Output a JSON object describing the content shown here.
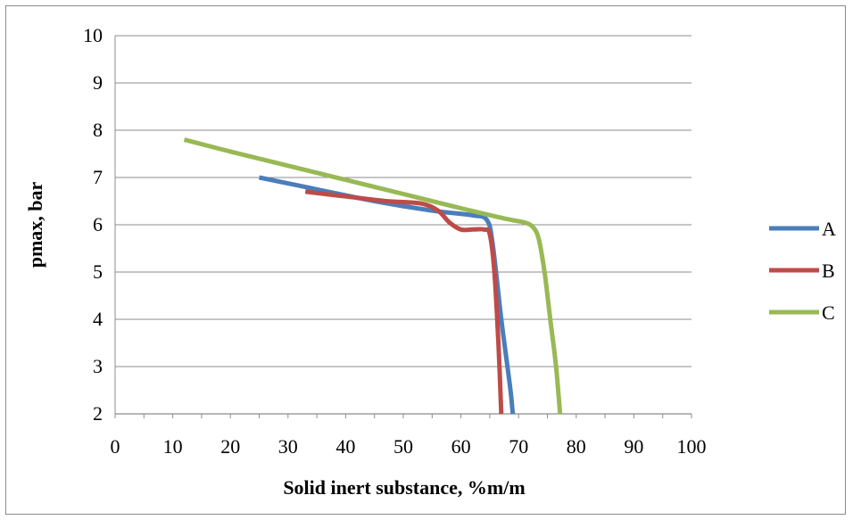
{
  "chart_data": {
    "type": "line",
    "title": "",
    "xlabel": "Solid inert substance, %m/m",
    "ylabel": "pmax, bar",
    "xlim": [
      0,
      100
    ],
    "ylim": [
      2,
      10
    ],
    "x_ticks": [
      0,
      10,
      20,
      30,
      40,
      50,
      60,
      70,
      80,
      90,
      100
    ],
    "y_ticks": [
      2,
      3,
      4,
      5,
      6,
      7,
      8,
      9,
      10
    ],
    "grid": "horizontal",
    "legend_position": "right",
    "series": [
      {
        "name": "A",
        "color": "#4a7ebb",
        "points": [
          [
            25,
            7.0
          ],
          [
            35,
            6.75
          ],
          [
            45,
            6.5
          ],
          [
            55,
            6.3
          ],
          [
            62,
            6.2
          ],
          [
            64.5,
            6.1
          ],
          [
            65.5,
            5.6
          ],
          [
            67,
            4.0
          ],
          [
            68.5,
            2.6
          ],
          [
            69,
            2.0
          ]
        ]
      },
      {
        "name": "B",
        "color": "#be4b48",
        "points": [
          [
            33,
            6.7
          ],
          [
            40,
            6.6
          ],
          [
            47,
            6.5
          ],
          [
            53,
            6.45
          ],
          [
            56,
            6.3
          ],
          [
            58,
            6.05
          ],
          [
            60,
            5.9
          ],
          [
            62,
            5.9
          ],
          [
            64,
            5.9
          ],
          [
            65,
            5.8
          ],
          [
            65.8,
            5.0
          ],
          [
            66.5,
            3.5
          ],
          [
            67,
            2.0
          ]
        ]
      },
      {
        "name": "C",
        "color": "#98b954",
        "points": [
          [
            12,
            7.8
          ],
          [
            20,
            7.55
          ],
          [
            30,
            7.25
          ],
          [
            40,
            6.95
          ],
          [
            50,
            6.65
          ],
          [
            60,
            6.35
          ],
          [
            68,
            6.12
          ],
          [
            71,
            6.05
          ],
          [
            72.5,
            5.95
          ],
          [
            73.5,
            5.7
          ],
          [
            74.5,
            5.0
          ],
          [
            75.5,
            4.0
          ],
          [
            76.5,
            3.0
          ],
          [
            77.2,
            2.0
          ]
        ]
      }
    ]
  }
}
